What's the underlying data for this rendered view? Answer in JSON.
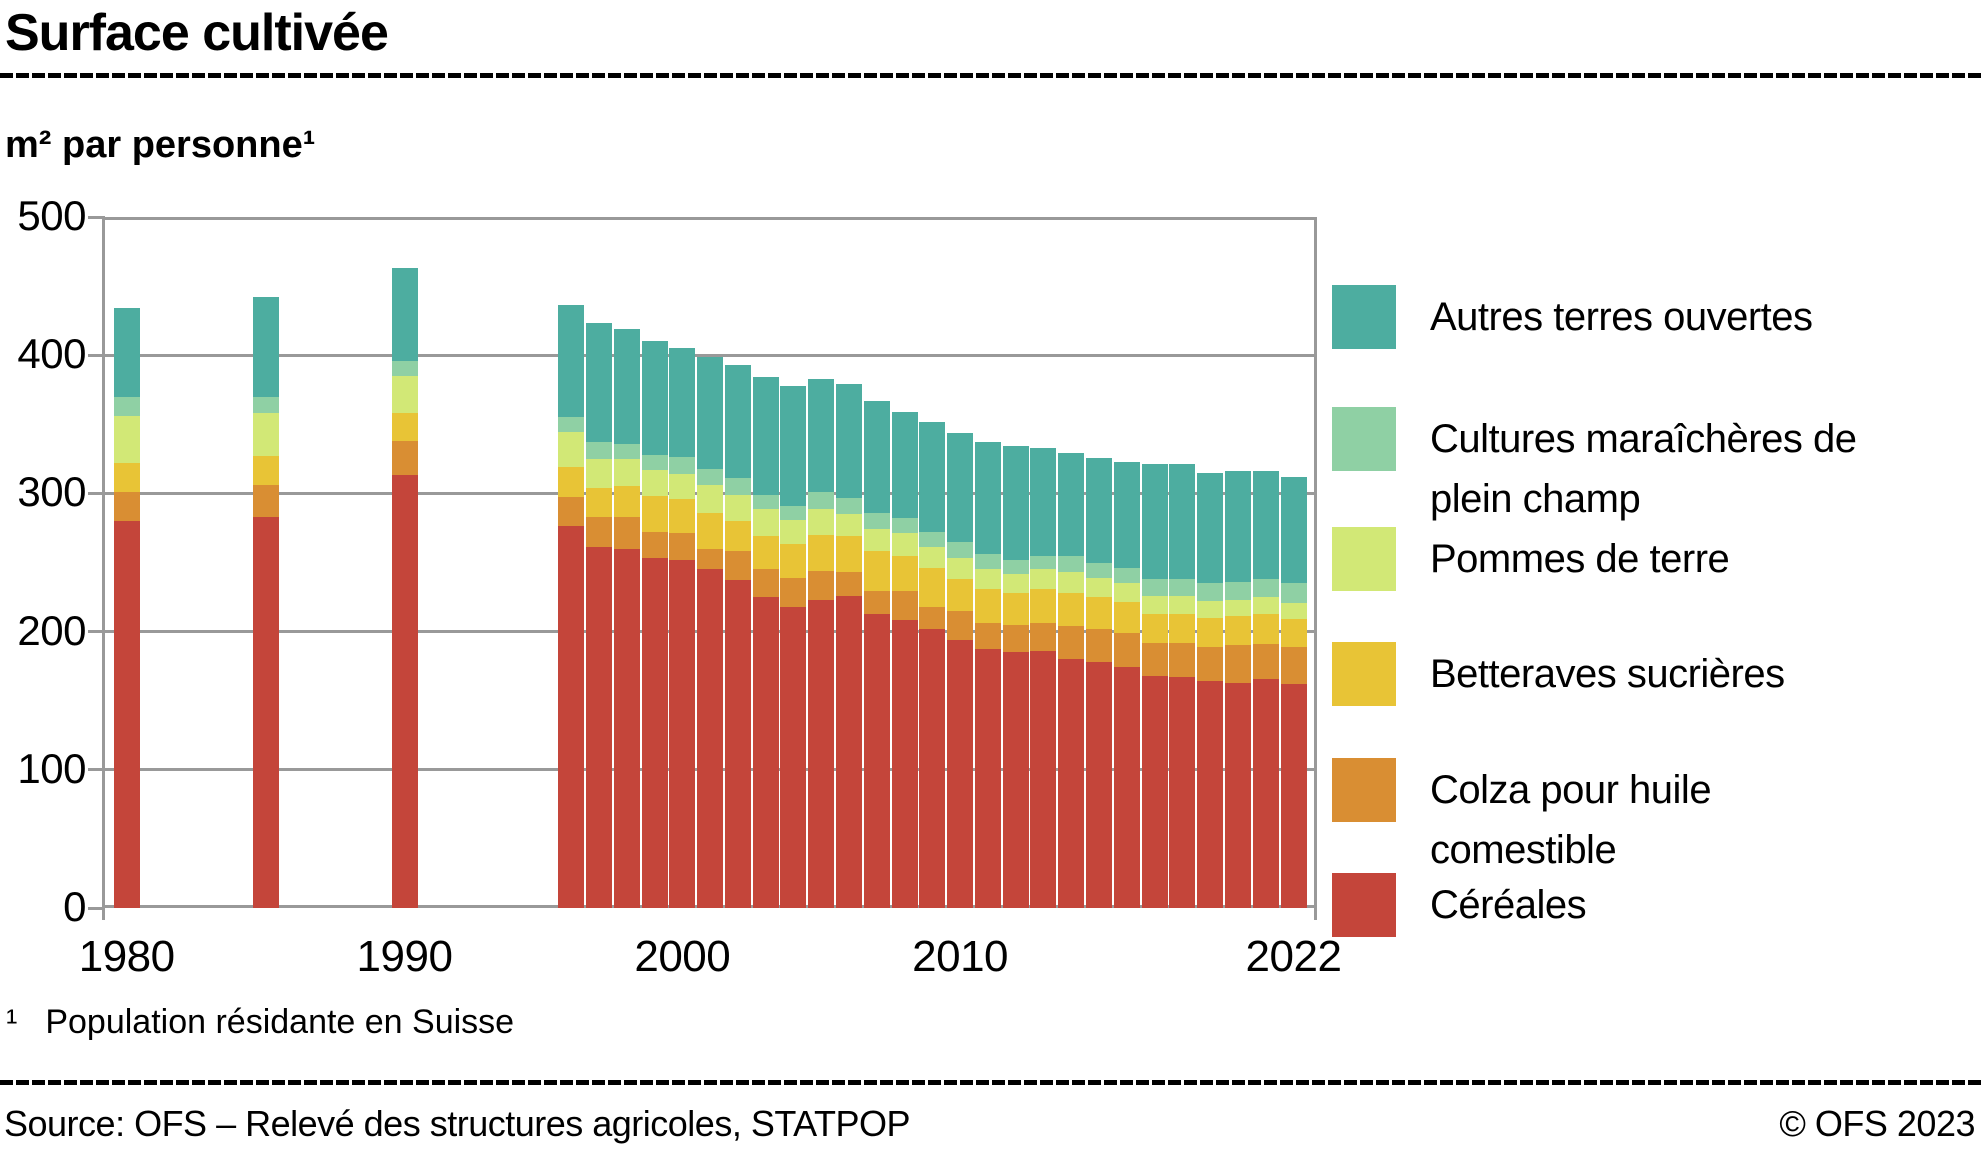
{
  "header": {
    "title": "Surface cultivée",
    "subtitle": "m² par personne¹"
  },
  "footnote": {
    "marker": "¹",
    "text": "Population résidante en Suisse"
  },
  "footer": {
    "source": "Source: OFS – Relevé des structures agricoles, STATPOP",
    "copyright": "© OFS 2023"
  },
  "chart_data": {
    "type": "bar",
    "stacked": true,
    "title": "Surface cultivée",
    "ylabel": "m² par personne",
    "ylim": [
      0,
      500
    ],
    "yticks": [
      0,
      100,
      200,
      300,
      400,
      500
    ],
    "xtick_labels": [
      1980,
      1990,
      2000,
      2010,
      2022
    ],
    "grid": true,
    "grid_color": "#999999",
    "legend_position": "right",
    "years": [
      1980,
      1985,
      1990,
      1996,
      1997,
      1998,
      1999,
      2000,
      2001,
      2002,
      2003,
      2004,
      2005,
      2006,
      2007,
      2008,
      2009,
      2010,
      2011,
      2012,
      2013,
      2014,
      2015,
      2016,
      2017,
      2018,
      2019,
      2020,
      2021,
      2022
    ],
    "series": [
      {
        "name": "Céréales",
        "color": "#C4453A",
        "legend_lines": [
          "Céréales"
        ],
        "values": [
          280,
          283,
          313,
          276,
          261,
          260,
          253,
          252,
          245,
          237,
          225,
          218,
          223,
          226,
          213,
          208,
          202,
          194,
          187,
          185,
          186,
          180,
          178,
          174,
          168,
          167,
          164,
          163,
          166,
          162
        ]
      },
      {
        "name": "Colza pour huile comestible",
        "color": "#D98E33",
        "legend_lines": [
          "Colza pour huile",
          "comestible"
        ],
        "values": [
          21,
          23,
          25,
          21,
          22,
          23,
          19,
          19,
          15,
          21,
          20,
          21,
          21,
          17,
          16,
          21,
          16,
          21,
          19,
          20,
          20,
          24,
          24,
          25,
          24,
          25,
          25,
          27,
          25,
          27
        ]
      },
      {
        "name": "Betteraves sucrières",
        "color": "#E8C436",
        "legend_lines": [
          "Betteraves sucrières"
        ],
        "values": [
          21,
          21,
          20,
          22,
          21,
          22,
          26,
          25,
          26,
          22,
          24,
          24,
          26,
          26,
          29,
          26,
          28,
          23,
          25,
          23,
          25,
          24,
          23,
          22,
          21,
          21,
          21,
          21,
          22,
          20
        ]
      },
      {
        "name": "Pommes de terre",
        "color": "#D2E876",
        "legend_lines": [
          "Pommes de terre"
        ],
        "values": [
          34,
          31,
          27,
          25,
          21,
          20,
          19,
          18,
          20,
          19,
          20,
          18,
          19,
          16,
          16,
          16,
          15,
          15,
          14,
          14,
          14,
          15,
          14,
          14,
          13,
          13,
          12,
          12,
          12,
          12
        ]
      },
      {
        "name": "Cultures maraîchères de plein champ",
        "color": "#8FD0A4",
        "legend_lines": [
          "Cultures maraîchères de",
          "plein champ"
        ],
        "values": [
          14,
          12,
          11,
          11,
          12,
          11,
          11,
          12,
          12,
          12,
          10,
          10,
          12,
          12,
          12,
          11,
          11,
          12,
          11,
          10,
          10,
          12,
          11,
          11,
          12,
          12,
          13,
          13,
          13,
          14
        ]
      },
      {
        "name": "Autres terres ouvertes",
        "color": "#4DADA0",
        "legend_lines": [
          "Autres terres ouvertes"
        ],
        "values": [
          64,
          72,
          67,
          81,
          86,
          83,
          82,
          79,
          81,
          82,
          85,
          87,
          82,
          82,
          81,
          77,
          80,
          79,
          81,
          82,
          78,
          74,
          76,
          77,
          83,
          83,
          80,
          80,
          78,
          77
        ]
      }
    ]
  }
}
